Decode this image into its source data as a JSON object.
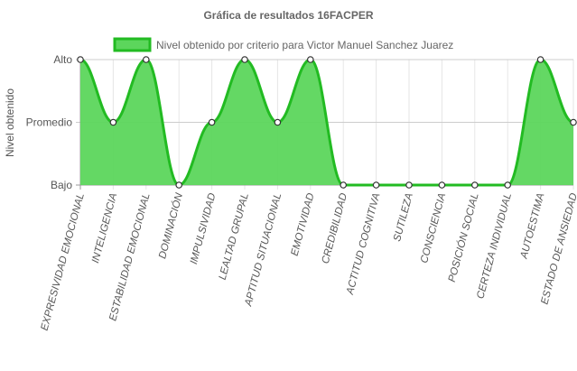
{
  "chart_data": {
    "type": "area",
    "title": "Gráfica de resultados 16FACPER",
    "ylabel": "Nivel obtenido",
    "xlabel": "",
    "y_levels": [
      "Bajo",
      "Promedio",
      "Alto"
    ],
    "ylim": [
      0,
      2
    ],
    "legend_position": "top",
    "grid": true,
    "categories": [
      "EXPRESIVIDAD EMOCIONAL",
      "INTELIGENCIA",
      "ESTABILIDAD EMOCIONAL",
      "DOMINACIÓN",
      "IMPULSIVIDAD",
      "LEALTAD GRUPAL",
      "APTITUD SITUACIONAL",
      "EMOTIVIDAD",
      "CREDIBILIDAD",
      "ACTITUD COGNITIVA",
      "SUTILEZA",
      "CONSCIENCIA",
      "POSICIÓN SOCIAL",
      "CERTEZA INDIVIDUAL",
      "AUTOESTIMA",
      "ESTADO DE ANSIEDAD"
    ],
    "series": [
      {
        "name": "Nivel obtenido por criterio para Victor Manuel Sanchez Juarez",
        "values": [
          2,
          1,
          2,
          0,
          1,
          2,
          1,
          2,
          0,
          0,
          0,
          0,
          0,
          0,
          2,
          1
        ]
      }
    ],
    "colors": {
      "fill": "#5cd65c",
      "line": "#22bb22",
      "point_fill": "#ffffff",
      "point_stroke": "#333333",
      "grid": "#e6e6e6",
      "axis": "#999999"
    }
  }
}
